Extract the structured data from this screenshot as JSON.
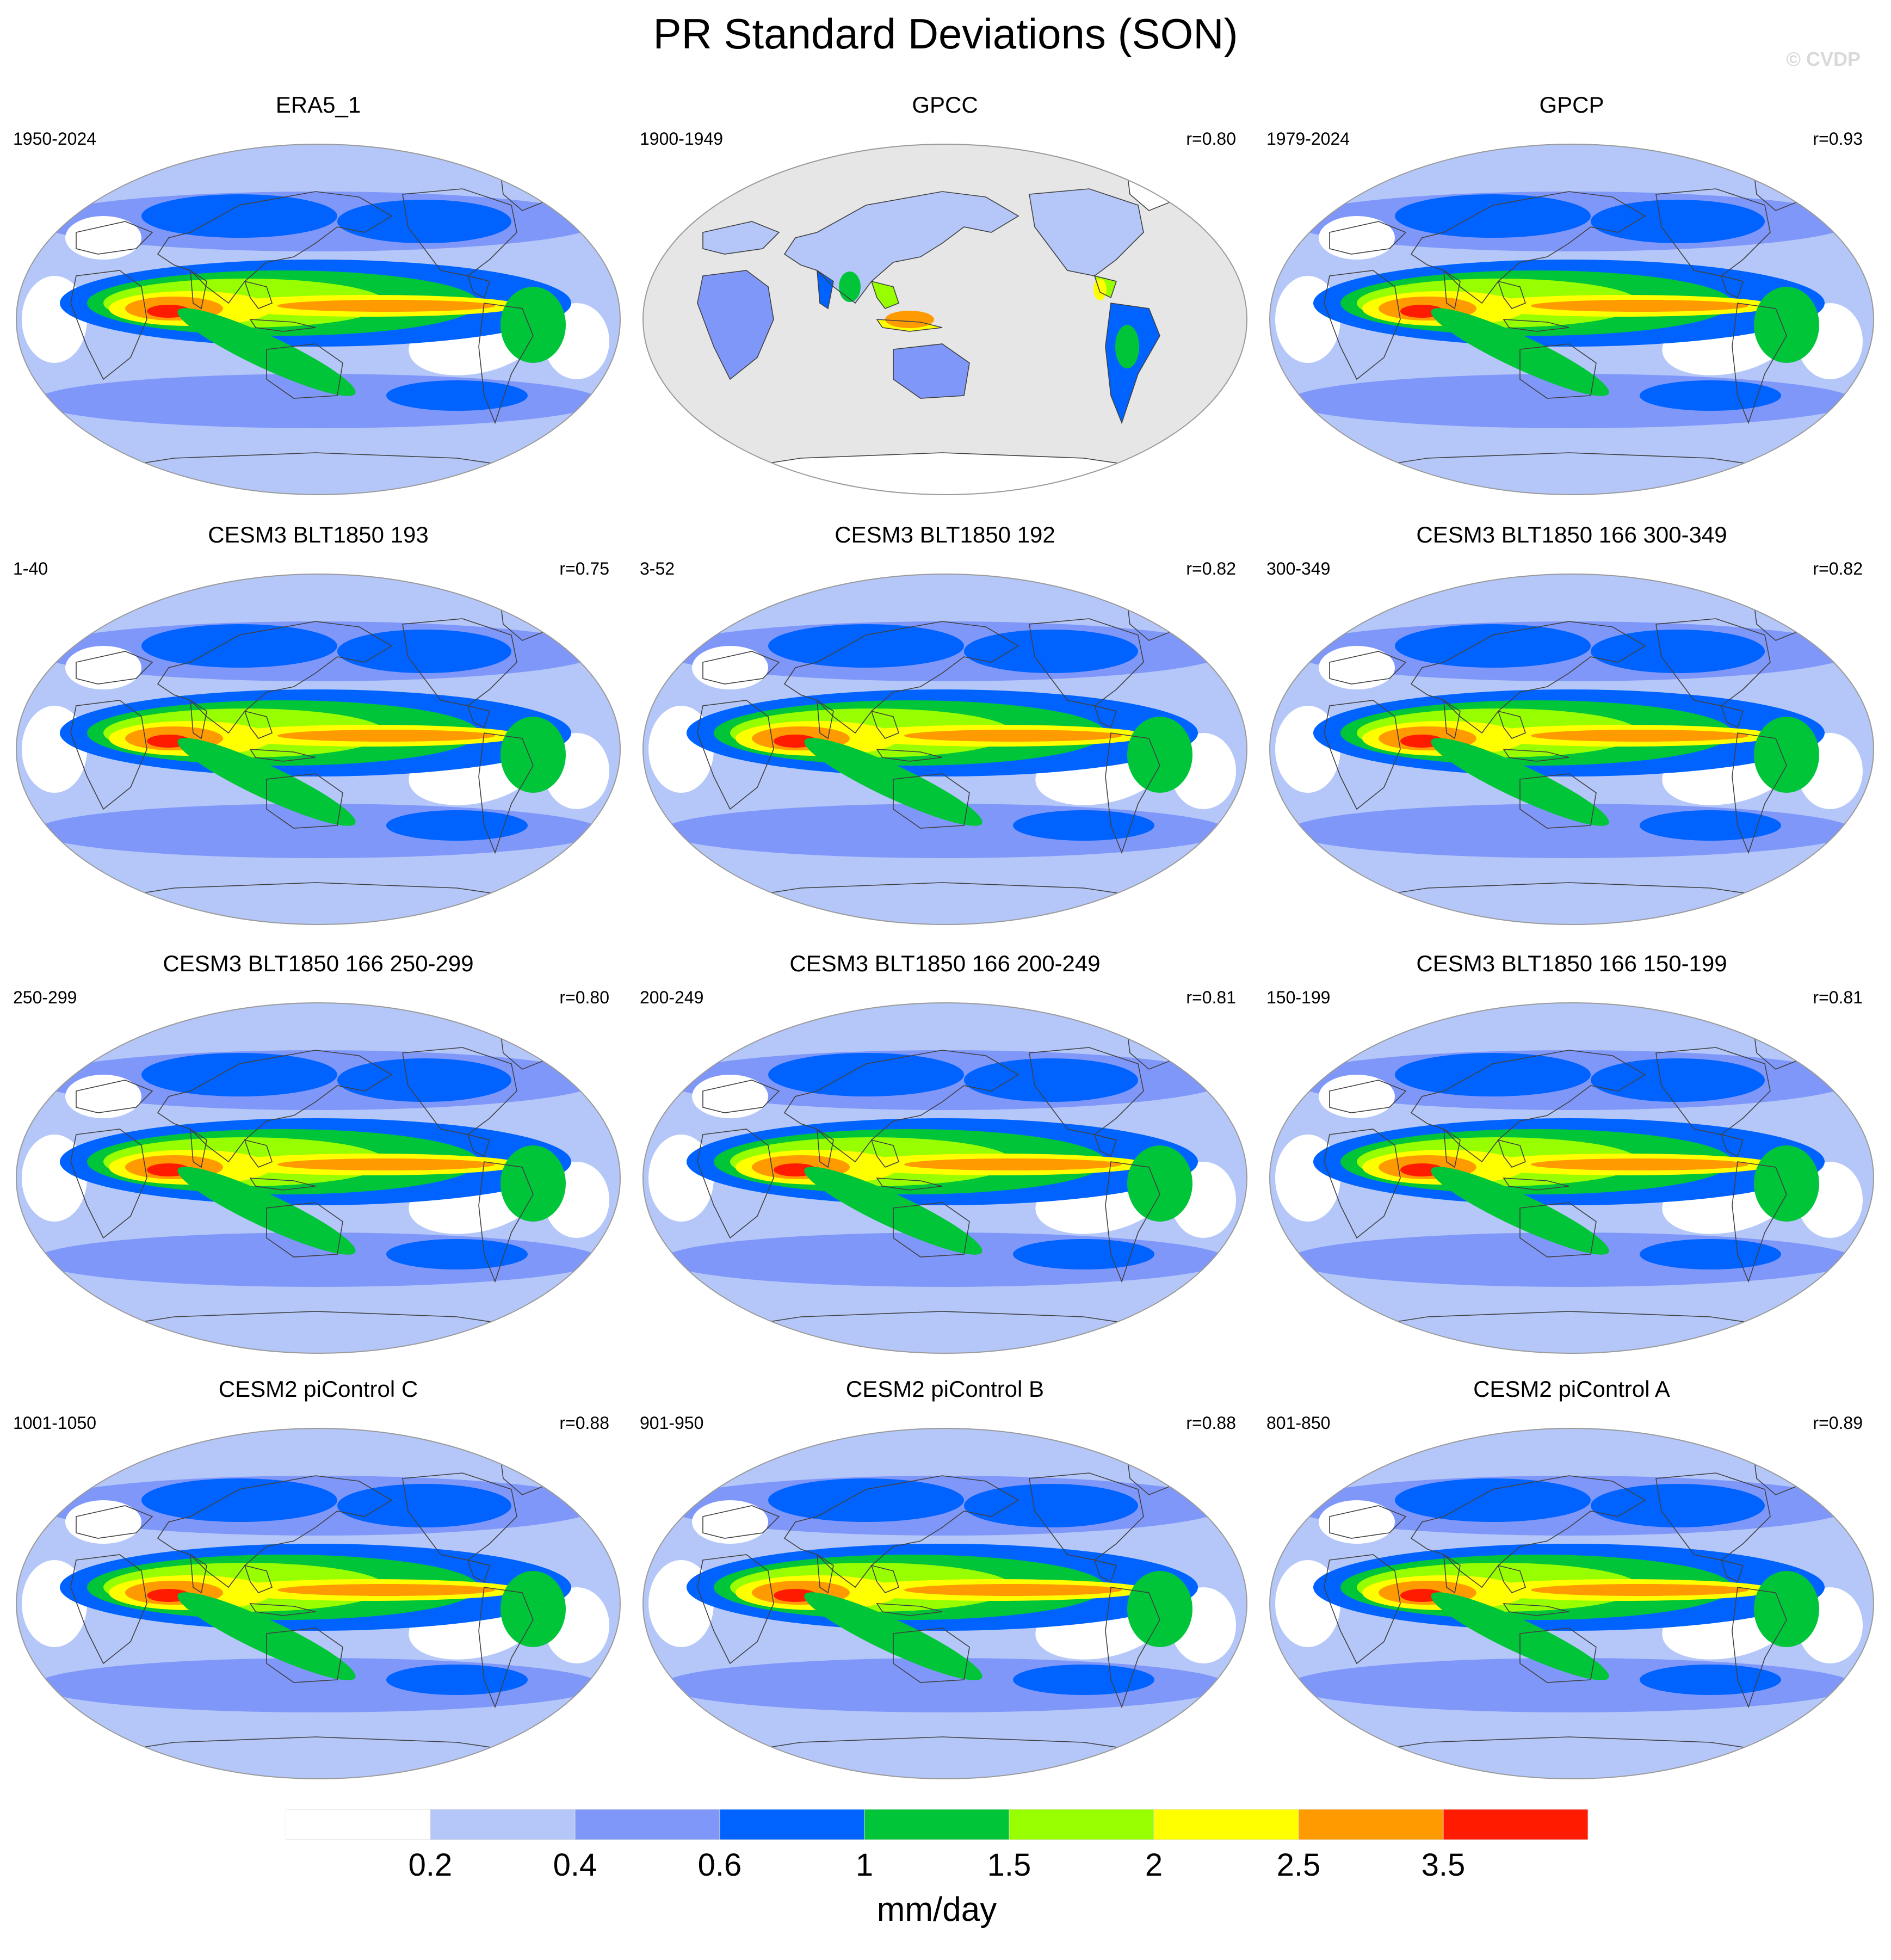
{
  "title": "PR Standard Deviations (SON)",
  "copyright": "© CVDP",
  "colorbar": {
    "unit": "mm/day",
    "tick_labels": [
      "0.2",
      "0.4",
      "0.6",
      "1",
      "1.5",
      "2",
      "2.5",
      "3.5"
    ],
    "colors": [
      "#ffffff",
      "#b4c7f8",
      "#8097fa",
      "#0063ff",
      "#00c538",
      "#97ff00",
      "#ffff00",
      "#ff9a00",
      "#ff1b00"
    ]
  },
  "colors": {
    "ocean_fill_gpcc": "#e6e6e6",
    "outline": "#9a9a9a",
    "coast": "#404040"
  },
  "panels": [
    {
      "title": "ERA5_1",
      "years": "1950-2024",
      "corr": ""
    },
    {
      "title": "GPCC",
      "years": "1900-1949",
      "corr": "r=0.80"
    },
    {
      "title": "GPCP",
      "years": "1979-2024",
      "corr": "r=0.93"
    },
    {
      "title": "CESM3 BLT1850 193",
      "years": "1-40",
      "corr": "r=0.75"
    },
    {
      "title": "CESM3 BLT1850 192",
      "years": "3-52",
      "corr": "r=0.82"
    },
    {
      "title": "CESM3 BLT1850 166 300-349",
      "years": "300-349",
      "corr": "r=0.82"
    },
    {
      "title": "CESM3 BLT1850 166 250-299",
      "years": "250-299",
      "corr": "r=0.80"
    },
    {
      "title": "CESM3 BLT1850 166 200-249",
      "years": "200-249",
      "corr": "r=0.81"
    },
    {
      "title": "CESM3 BLT1850 166 150-199",
      "years": "150-199",
      "corr": "r=0.81"
    },
    {
      "title": "CESM2 piControl C",
      "years": "1001-1050",
      "corr": "r=0.88"
    },
    {
      "title": "CESM2 piControl B",
      "years": "901-950",
      "corr": "r=0.88"
    },
    {
      "title": "CESM2 piControl A",
      "years": "801-850",
      "corr": "r=0.89"
    }
  ]
}
